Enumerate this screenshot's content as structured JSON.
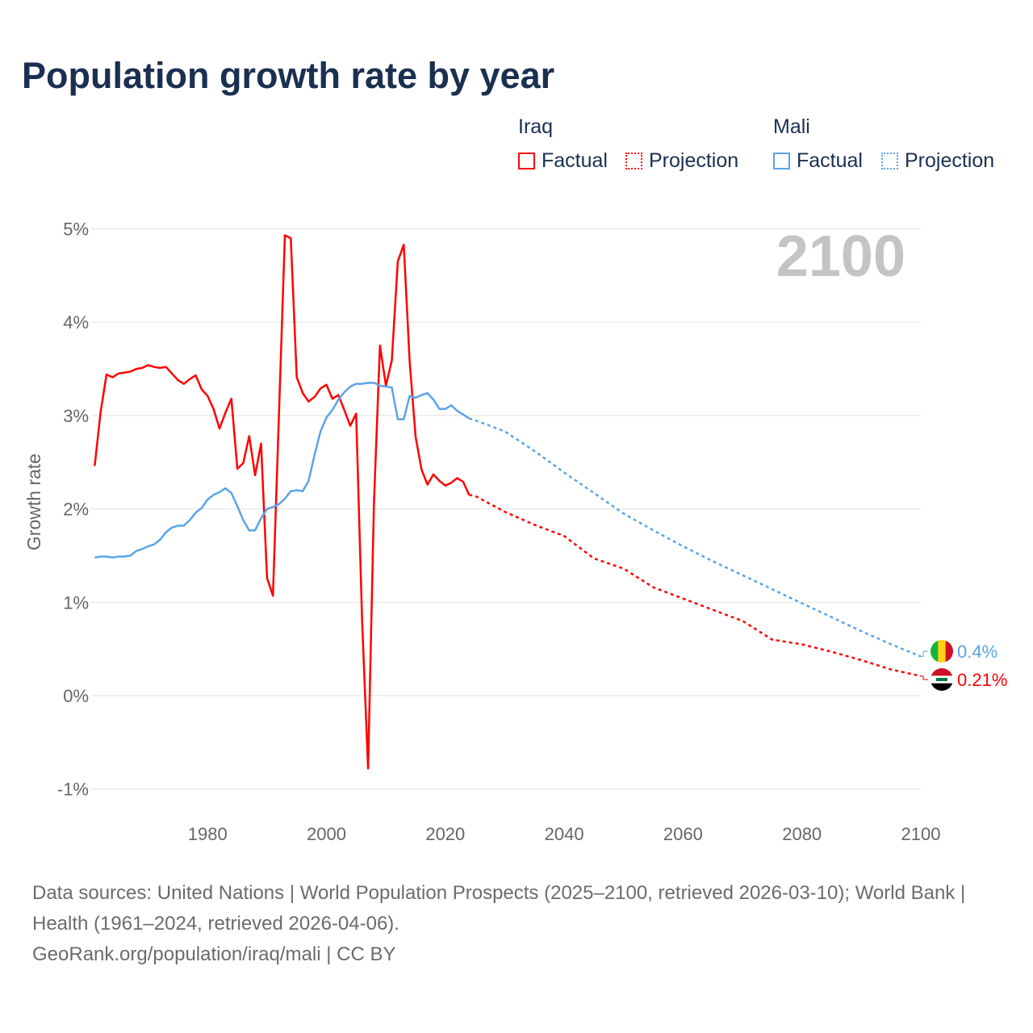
{
  "chart_data": {
    "type": "line",
    "title": "Population growth rate by year",
    "xlabel": "",
    "ylabel": "Growth rate",
    "xlim": [
      1961,
      2100
    ],
    "ylim": [
      -1,
      5
    ],
    "x_ticks": [
      1980,
      2000,
      2020,
      2040,
      2060,
      2080,
      2100
    ],
    "x_tick_labels": [
      "1980",
      "2000",
      "2020",
      "2040",
      "2060",
      "2080",
      "2100"
    ],
    "y_ticks": [
      -1,
      0,
      1,
      2,
      3,
      4,
      5
    ],
    "y_tick_labels": [
      "-1%",
      "0%",
      "1%",
      "2%",
      "3%",
      "4%",
      "5%"
    ],
    "grid": true,
    "year_watermark": "2100",
    "legend_placement": "top-right",
    "series": [
      {
        "name": "Iraq",
        "color": "#ff0000",
        "end_label": "0.21%",
        "flag": "iraq-flag",
        "factual": {
          "x": [
            1961,
            1962,
            1963,
            1964,
            1965,
            1966,
            1967,
            1968,
            1969,
            1970,
            1971,
            1972,
            1973,
            1974,
            1975,
            1976,
            1977,
            1978,
            1979,
            1980,
            1981,
            1982,
            1983,
            1984,
            1985,
            1986,
            1987,
            1988,
            1989,
            1990,
            1991,
            1992,
            1993,
            1994,
            1995,
            1996,
            1997,
            1998,
            1999,
            2000,
            2001,
            2002,
            2003,
            2004,
            2005,
            2006,
            2007,
            2008,
            2009,
            2010,
            2011,
            2012,
            2013,
            2014,
            2015,
            2016,
            2017,
            2018,
            2019,
            2020,
            2021,
            2022,
            2023,
            2024
          ],
          "y": [
            2.46,
            3.04,
            3.44,
            3.41,
            3.45,
            3.46,
            3.47,
            3.5,
            3.51,
            3.54,
            3.52,
            3.51,
            3.52,
            3.45,
            3.38,
            3.34,
            3.39,
            3.43,
            3.28,
            3.21,
            3.07,
            2.86,
            3.03,
            3.18,
            2.43,
            2.49,
            2.78,
            2.36,
            2.7,
            1.26,
            1.07,
            3.0,
            4.93,
            4.9,
            3.41,
            3.24,
            3.15,
            3.2,
            3.29,
            3.33,
            3.18,
            3.22,
            3.06,
            2.89,
            3.02,
            0.8,
            -0.78,
            2.07,
            3.75,
            3.32,
            3.59,
            4.65,
            4.83,
            3.58,
            2.77,
            2.42,
            2.26,
            2.37,
            2.3,
            2.25,
            2.28,
            2.33,
            2.29,
            2.15
          ]
        },
        "projection": {
          "x": [
            2024,
            2025,
            2030,
            2035,
            2040,
            2045,
            2050,
            2055,
            2060,
            2065,
            2070,
            2075,
            2080,
            2085,
            2090,
            2095,
            2100
          ],
          "y": [
            2.15,
            2.14,
            1.97,
            1.83,
            1.71,
            1.47,
            1.36,
            1.16,
            1.04,
            0.92,
            0.8,
            0.6,
            0.55,
            0.47,
            0.38,
            0.28,
            0.21
          ]
        }
      },
      {
        "name": "Mali",
        "color": "#5ba4e6",
        "end_label": "0.4%",
        "flag": "mali-flag",
        "factual": {
          "x": [
            1961,
            1962,
            1963,
            1964,
            1965,
            1966,
            1967,
            1968,
            1969,
            1970,
            1971,
            1972,
            1973,
            1974,
            1975,
            1976,
            1977,
            1978,
            1979,
            1980,
            1981,
            1982,
            1983,
            1984,
            1985,
            1986,
            1987,
            1988,
            1989,
            1990,
            1991,
            1992,
            1993,
            1994,
            1995,
            1996,
            1997,
            1998,
            1999,
            2000,
            2001,
            2002,
            2003,
            2004,
            2005,
            2006,
            2007,
            2008,
            2009,
            2010,
            2011,
            2012,
            2013,
            2014,
            2015,
            2016,
            2017,
            2018,
            2019,
            2020,
            2021,
            2022,
            2023,
            2024
          ],
          "y": [
            1.48,
            1.49,
            1.49,
            1.48,
            1.49,
            1.49,
            1.5,
            1.55,
            1.57,
            1.6,
            1.62,
            1.67,
            1.75,
            1.8,
            1.82,
            1.82,
            1.88,
            1.96,
            2.01,
            2.1,
            2.15,
            2.18,
            2.22,
            2.17,
            2.03,
            1.88,
            1.77,
            1.77,
            1.9,
            2.0,
            2.02,
            2.05,
            2.11,
            2.19,
            2.2,
            2.19,
            2.3,
            2.58,
            2.83,
            2.98,
            3.06,
            3.17,
            3.25,
            3.31,
            3.34,
            3.34,
            3.35,
            3.35,
            3.32,
            3.31,
            3.3,
            2.96,
            2.96,
            3.21,
            3.19,
            3.22,
            3.24,
            3.17,
            3.07,
            3.07,
            3.11,
            3.05,
            3.01,
            2.97
          ]
        },
        "projection": {
          "x": [
            2024,
            2025,
            2030,
            2035,
            2040,
            2045,
            2050,
            2055,
            2060,
            2065,
            2070,
            2075,
            2080,
            2085,
            2090,
            2095,
            2100
          ],
          "y": [
            2.97,
            2.95,
            2.83,
            2.62,
            2.39,
            2.17,
            1.95,
            1.77,
            1.6,
            1.44,
            1.29,
            1.14,
            0.99,
            0.84,
            0.69,
            0.55,
            0.42
          ]
        }
      }
    ]
  },
  "legend": {
    "groups": [
      {
        "name": "Iraq",
        "factual": "Factual",
        "projection": "Projection"
      },
      {
        "name": "Mali",
        "factual": "Factual",
        "projection": "Projection"
      }
    ]
  },
  "footer": {
    "sources": "Data sources: United Nations | World Population Prospects (2025–2100, retrieved 2026-03-10); World Bank | Health (1961–2024, retrieved 2026-04-06).",
    "credit": "GeoRank.org/population/iraq/mali | CC BY"
  }
}
